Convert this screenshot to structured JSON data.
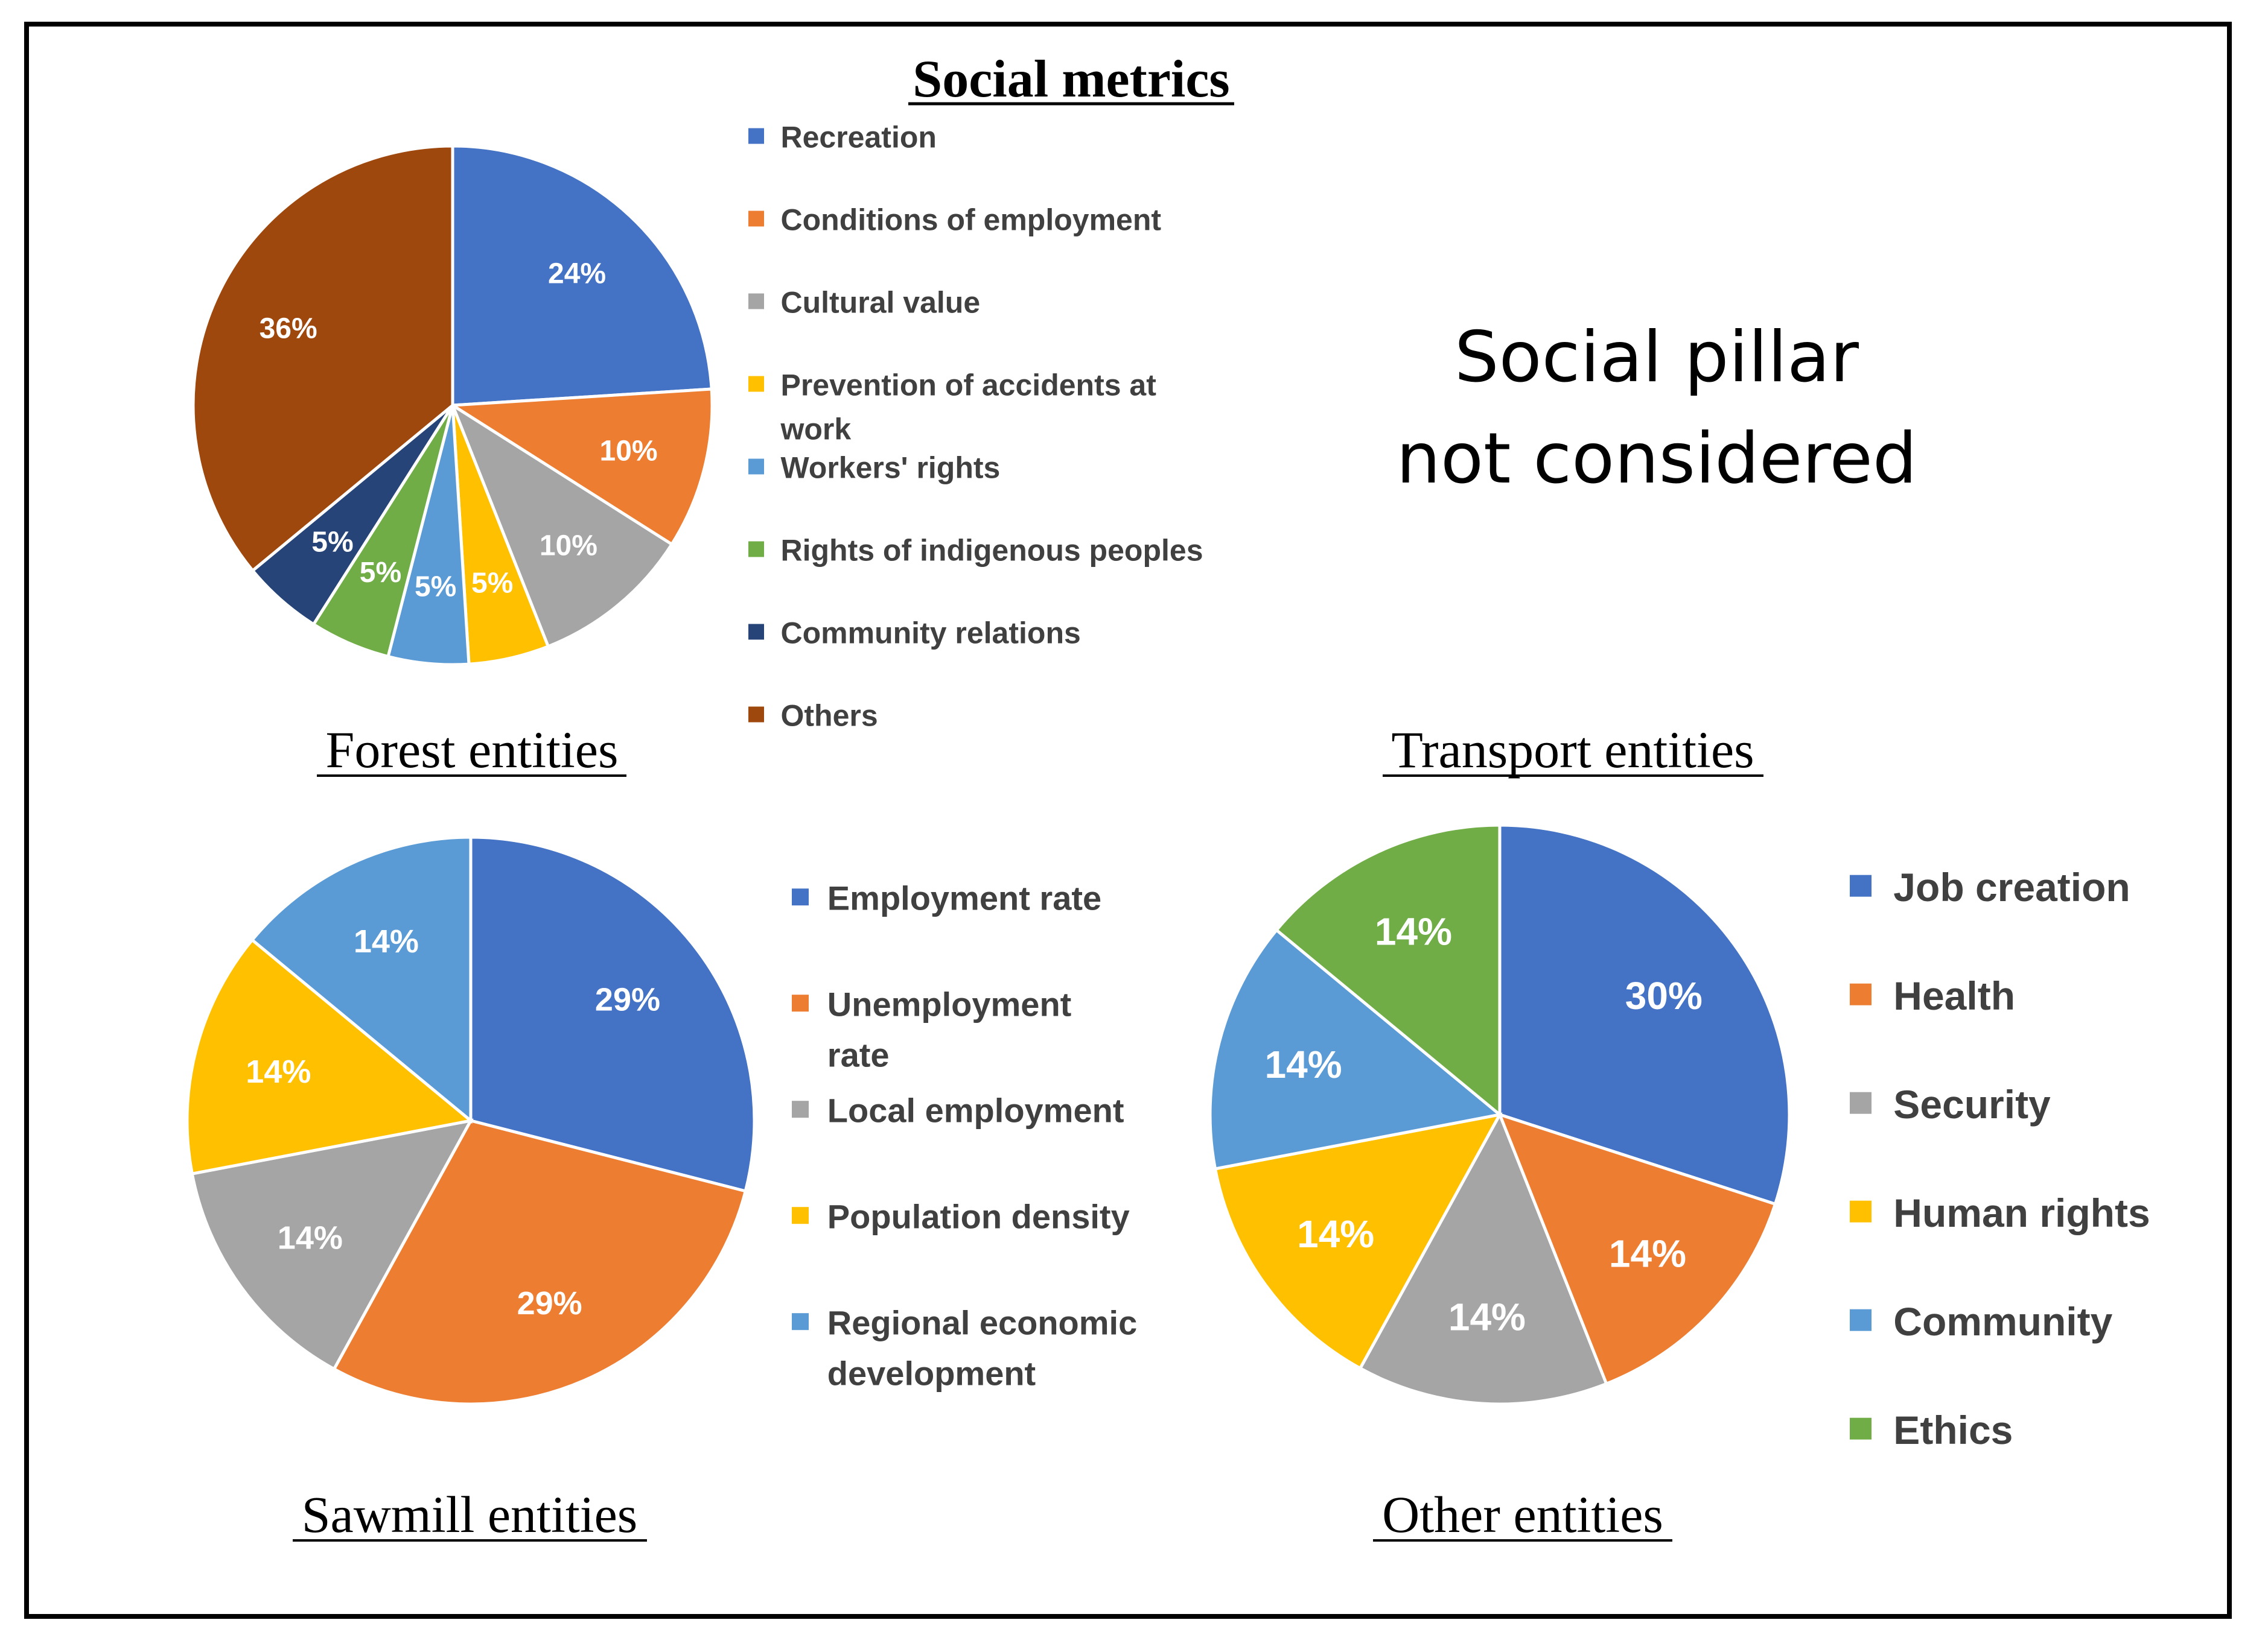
{
  "pillar_note": [
    "Social pillar",
    "not considered"
  ],
  "chart_data": [
    {
      "type": "pie",
      "title": "Social metrics",
      "caption": "Forest entities",
      "categories": [
        "Recreation",
        "Conditions of employment",
        "Cultural value",
        "Prevention of accidents at work",
        "Workers' rights",
        "Rights of indigenous peoples",
        "Community relations",
        "Others"
      ],
      "legend_lines": [
        [
          "Recreation"
        ],
        [
          "Conditions of employment"
        ],
        [
          "Cultural value"
        ],
        [
          "Prevention of accidents at",
          "work"
        ],
        [
          "Workers' rights"
        ],
        [
          "Rights of indigenous peoples"
        ],
        [
          "Community relations"
        ],
        [
          "Others"
        ]
      ],
      "values": [
        24,
        10,
        10,
        5,
        5,
        5,
        5,
        36
      ],
      "labels": [
        "24%",
        "10%",
        "10%",
        "5%",
        "5%",
        "5%",
        "5%",
        "36%"
      ],
      "colors": [
        "#4472C4",
        "#ED7D31",
        "#A5A5A5",
        "#FFC000",
        "#5B9BD5",
        "#70AD47",
        "#264478",
        "#9E480E"
      ],
      "legend": "right"
    },
    {
      "type": "pie",
      "caption": "Sawmill entities",
      "categories": [
        "Employment rate",
        "Unemployment rate",
        "Local employment",
        "Population density",
        "Regional economic development"
      ],
      "legend_lines": [
        [
          "Employment rate"
        ],
        [
          "Unemployment",
          "rate"
        ],
        [
          "Local employment"
        ],
        [
          "Population density"
        ],
        [
          "Regional economic",
          "development"
        ]
      ],
      "values": [
        29,
        29,
        14,
        14,
        14
      ],
      "labels": [
        "29%",
        "29%",
        "14%",
        "14%",
        "14%"
      ],
      "colors": [
        "#4472C4",
        "#ED7D31",
        "#A5A5A5",
        "#FFC000",
        "#5B9BD5"
      ],
      "legend": "right"
    },
    {
      "type": "pie",
      "caption": "Other entities",
      "categories": [
        "Job creation",
        "Health",
        "Security",
        "Human rights",
        "Community",
        "Ethics"
      ],
      "legend_lines": [
        [
          "Job creation"
        ],
        [
          "Health"
        ],
        [
          "Security"
        ],
        [
          "Human rights"
        ],
        [
          "Community"
        ],
        [
          "Ethics"
        ]
      ],
      "values": [
        30,
        14,
        14,
        14,
        14,
        14
      ],
      "labels": [
        "30%",
        "14%",
        "14%",
        "14%",
        "14%",
        "14%"
      ],
      "colors": [
        "#4472C4",
        "#ED7D31",
        "#A5A5A5",
        "#FFC000",
        "#5B9BD5",
        "#70AD47"
      ],
      "legend": "right"
    }
  ],
  "transport_caption": "Transport entities"
}
